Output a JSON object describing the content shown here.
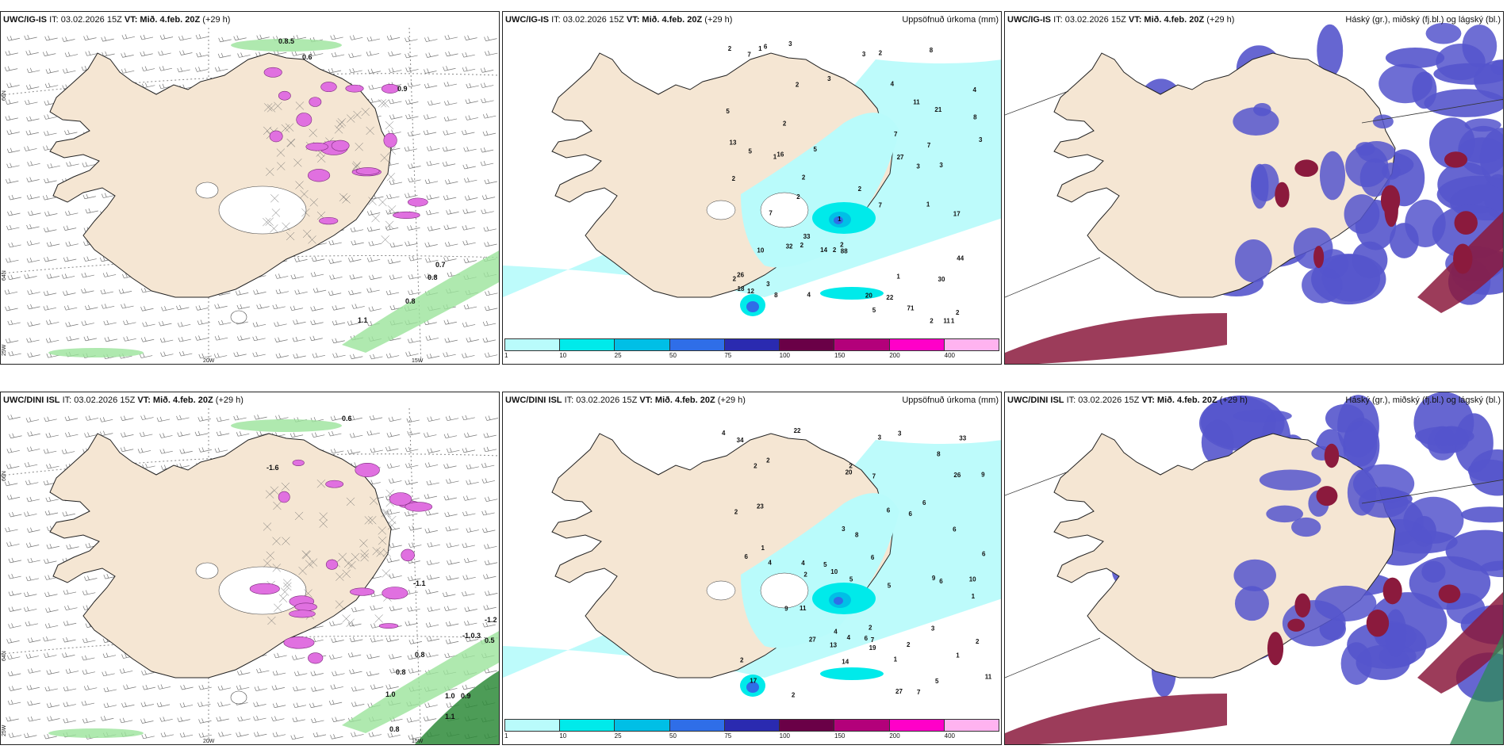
{
  "rows": [
    {
      "model": "UWC/IG-IS",
      "panels": {
        "wind": {
          "title_it": "IT: 03.02.2026 15Z",
          "title_vt_label": "VT:",
          "title_vt": "Mið. 4.feb. 20Z",
          "title_lead": "(+29 h)"
        },
        "precip": {
          "title_it": "IT: 03.02.2026 15Z",
          "title_vt_label": "VT:",
          "title_vt": "Mið. 4.feb. 20Z",
          "title_lead": "(+29 h)",
          "right_title": "Uppsöfnuð úrkoma (mm)"
        },
        "cloud": {
          "title_it": "IT: 03.02.2026 15Z",
          "title_vt_label": "VT:",
          "title_vt": "Mið. 4.feb. 20Z",
          "title_lead": "(+29 h)",
          "right_title": "Háský (gr.), miðský (fj.bl.) og lágský (bl.)"
        }
      },
      "wind_values": [
        "0.8.5",
        "0.7",
        "0.8",
        "0.8",
        "1.1",
        "0.6",
        "0.9"
      ],
      "precip_values": [
        "1",
        "1",
        "1",
        "1",
        "1",
        "2",
        "2",
        "2",
        "2",
        "3",
        "3",
        "3",
        "2",
        "2",
        "2",
        "1",
        "2",
        "3",
        "4",
        "5",
        "11",
        "16",
        "22",
        "32",
        "30",
        "27",
        "20",
        "26",
        "21",
        "2",
        "33",
        "14",
        "12",
        "44",
        "11",
        "13",
        "5",
        "6",
        "7",
        "4",
        "2",
        "2",
        "17",
        "71",
        "88",
        "18",
        "2",
        "2",
        "3",
        "4",
        "5",
        "7",
        "7",
        "8",
        "8",
        "7",
        "8",
        "7",
        "10",
        "3",
        "2",
        "3",
        "5"
      ],
      "axis": {
        "lat1": "66N",
        "lat2": "64N",
        "lon1": "20W",
        "lon2": "15W",
        "lon3": "25W"
      }
    },
    {
      "model": "UWC/DINI ISL",
      "panels": {
        "wind": {
          "title_it": "IT: 03.02.2026 15Z",
          "title_vt_label": "VT:",
          "title_vt": "Mið. 4.feb. 20Z",
          "title_lead": "(+29 h)"
        },
        "precip": {
          "title_it": "IT: 03.02.2026 15Z",
          "title_vt_label": "VT:",
          "title_vt": "Mið. 4.feb. 20Z",
          "title_lead": "(+29 h)",
          "right_title": "Uppsöfnuð úrkoma (mm)"
        },
        "cloud": {
          "title_it": "IT: 03.02.2026 15Z",
          "title_vt_label": "VT:",
          "title_vt": "Mið. 4.feb. 20Z",
          "title_lead": "(+29 h)",
          "right_title": "Háský (gr.), miðský (fj.bl.) og lágský (bl.)"
        }
      },
      "wind_values": [
        "0.6",
        "-1.6",
        "-1.1",
        "-1.2",
        "-1.0.3",
        "0.8",
        "0.8",
        "1.0",
        "1.0",
        "0.9",
        "0.8",
        "1.1",
        "0.5"
      ],
      "precip_values": [
        "1",
        "2",
        "2",
        "3",
        "2",
        "6",
        "7",
        "11",
        "2",
        "1",
        "1",
        "4",
        "3",
        "6",
        "4",
        "17",
        "20",
        "26",
        "27",
        "22",
        "9",
        "27",
        "11",
        "34",
        "13",
        "6",
        "2",
        "1",
        "2",
        "19",
        "7",
        "6",
        "6",
        "5",
        "4",
        "4",
        "3",
        "2",
        "2",
        "5",
        "7",
        "6",
        "6",
        "10",
        "14",
        "33",
        "23",
        "4",
        "2",
        "2",
        "5",
        "5",
        "6",
        "6",
        "9",
        "10",
        "8",
        "3",
        "8",
        "9"
      ],
      "axis": {
        "lat1": "66N",
        "lat2": "64N",
        "lon1": "20W",
        "lon2": "15W",
        "lon3": "25W"
      }
    }
  ],
  "legend": {
    "ticks": [
      "1",
      "10",
      "25",
      "50",
      "75",
      "100",
      "150",
      "200",
      "400"
    ],
    "colors": [
      "#b9fbfb",
      "#00eaea",
      "#00bfe6",
      "#2f6ee8",
      "#2a2ab0",
      "#6a0047",
      "#b3007a",
      "#ff00c8",
      "#ffb3f0"
    ]
  },
  "colors": {
    "land": "#f5e6d3",
    "precip_light": "#b6f6f6",
    "high_cloud": "#5555cc",
    "low_cloud": "#8b1a3d",
    "wind_green": "#9be39b",
    "magenta": "#e070e0"
  }
}
